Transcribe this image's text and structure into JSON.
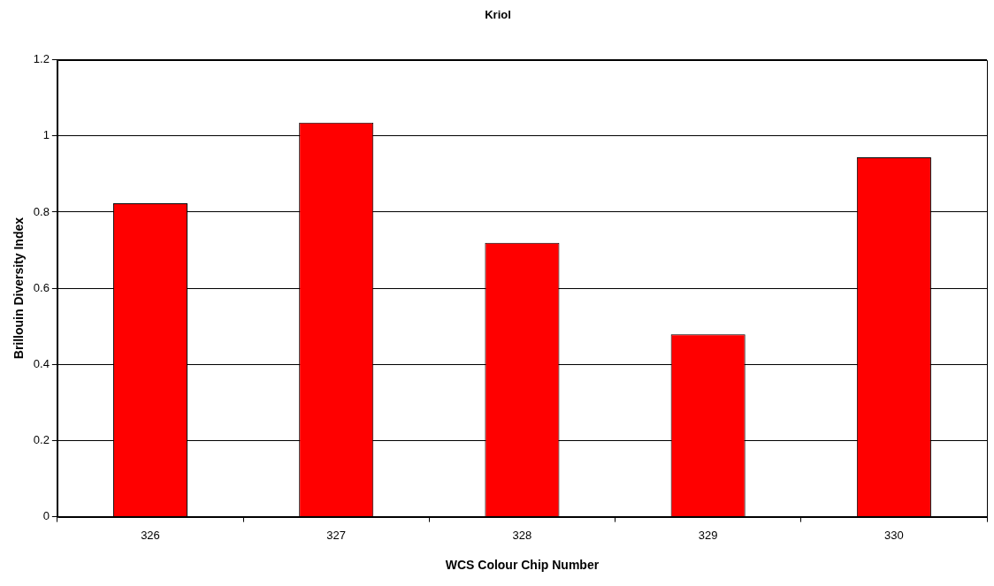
{
  "chart_data": {
    "type": "bar",
    "title": "Kriol",
    "xlabel": "WCS Colour Chip Number",
    "ylabel": "Brillouin Diversity Index",
    "categories": [
      "326",
      "327",
      "328",
      "329",
      "330"
    ],
    "values": [
      0.823,
      1.035,
      0.719,
      0.479,
      0.944
    ],
    "color": "#ff0000",
    "ylim": [
      0,
      1.2
    ],
    "yticks": [
      0,
      0.2,
      0.4,
      0.6,
      0.8,
      1,
      1.2
    ],
    "grid": "y",
    "legend": false
  }
}
